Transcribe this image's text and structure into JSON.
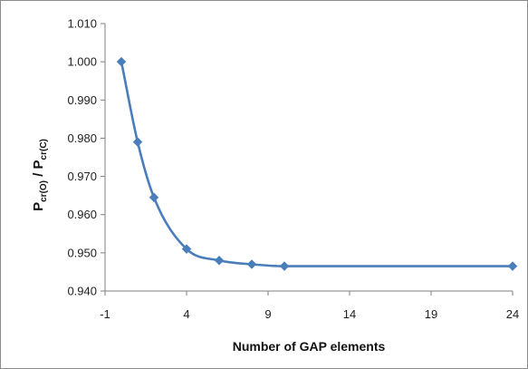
{
  "chart_data": {
    "type": "line",
    "title": "",
    "xlabel": "Number of GAP elements",
    "ylabel": {
      "main1": "P",
      "sub1": "cr(O)",
      "sep": " / ",
      "main2": "P",
      "sub2": "cr(C)"
    },
    "xlim": [
      -1,
      24
    ],
    "ylim": [
      0.94,
      1.01
    ],
    "x_ticks": [
      "-1",
      "4",
      "9",
      "14",
      "19",
      "24"
    ],
    "y_ticks": [
      "0.940",
      "0.950",
      "0.960",
      "0.970",
      "0.980",
      "0.990",
      "1.000",
      "1.010"
    ],
    "grid": false,
    "legend": "none",
    "series": [
      {
        "color": "#4a7ebb",
        "marker": "diamond",
        "smooth": true,
        "x": [
          0,
          1,
          2,
          4,
          6,
          8,
          10,
          24
        ],
        "y": [
          1.0,
          0.979,
          0.9645,
          0.951,
          0.948,
          0.947,
          0.9465,
          0.9465
        ]
      }
    ]
  }
}
